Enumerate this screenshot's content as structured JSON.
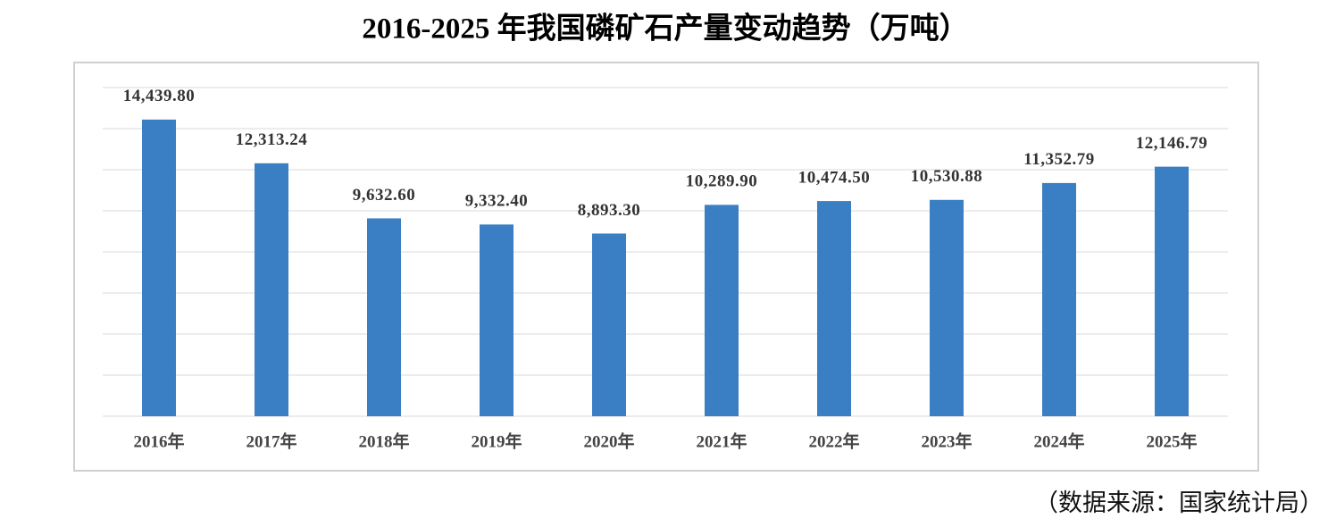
{
  "chart_data": {
    "type": "bar",
    "title": "2016-2025 年我国磷矿石产量变动趋势（万吨）",
    "categories": [
      "2016年",
      "2017年",
      "2018年",
      "2019年",
      "2020年",
      "2021年",
      "2022年",
      "2023年",
      "2024年",
      "2025年"
    ],
    "values": [
      14439.8,
      12313.24,
      9632.6,
      9332.4,
      8893.3,
      10289.9,
      10474.5,
      10530.88,
      11352.79,
      12146.79
    ],
    "value_labels": [
      "14,439.80",
      "12,313.24",
      "9,632.60",
      "9,332.40",
      "8,893.30",
      "10,289.90",
      "10,474.50",
      "10,530.88",
      "11,352.79",
      "12,146.79"
    ],
    "color": "#3a7fc3",
    "ylim": [
      0,
      16000
    ],
    "yticks": [
      0,
      2000,
      4000,
      6000,
      8000,
      10000,
      12000,
      14000,
      16000
    ],
    "grid": true,
    "source": "（数据来源：国家统计局）"
  }
}
